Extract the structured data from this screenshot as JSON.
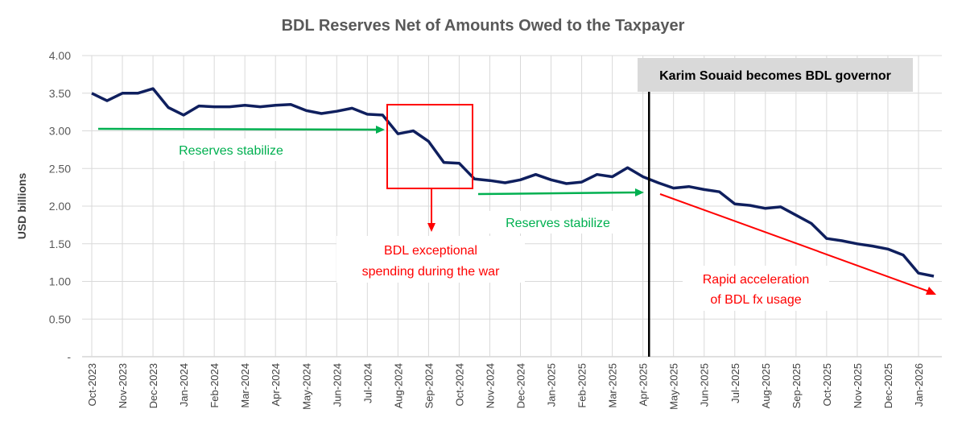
{
  "chart_data": {
    "type": "line",
    "title": "BDL Reserves Net of Amounts Owed to the Taxpayer",
    "ylabel": "USD billions",
    "xlabel": "",
    "ylim": [
      0,
      4
    ],
    "y_ticks": [
      {
        "value": 0,
        "label": "-"
      },
      {
        "value": 0.5,
        "label": "0.50"
      },
      {
        "value": 1.0,
        "label": "1.00"
      },
      {
        "value": 1.5,
        "label": "1.50"
      },
      {
        "value": 2.0,
        "label": "2.00"
      },
      {
        "value": 2.5,
        "label": "2.50"
      },
      {
        "value": 3.0,
        "label": "3.00"
      },
      {
        "value": 3.5,
        "label": "3.50"
      },
      {
        "value": 4.0,
        "label": "4.00"
      }
    ],
    "x_tick_labels": [
      {
        "index": 0,
        "label": "Oct-2023"
      },
      {
        "index": 2,
        "label": "Nov-2023"
      },
      {
        "index": 4,
        "label": "Dec-2023"
      },
      {
        "index": 6,
        "label": "Jan-2024"
      },
      {
        "index": 8,
        "label": "Feb-2024"
      },
      {
        "index": 10,
        "label": "Mar-2024"
      },
      {
        "index": 12,
        "label": "Apr-2024"
      },
      {
        "index": 14,
        "label": "May-2024"
      },
      {
        "index": 16,
        "label": "Jun-2024"
      },
      {
        "index": 18,
        "label": "Jul-2024"
      },
      {
        "index": 20,
        "label": "Aug-2024"
      },
      {
        "index": 22,
        "label": "Sep-2024"
      },
      {
        "index": 24,
        "label": "Oct-2024"
      },
      {
        "index": 26,
        "label": "Nov-2024"
      },
      {
        "index": 28,
        "label": "Dec-2024"
      },
      {
        "index": 30,
        "label": "Jan-2025"
      },
      {
        "index": 32,
        "label": "Feb-2025"
      },
      {
        "index": 34,
        "label": "Mar-2025"
      },
      {
        "index": 36,
        "label": "Apr-2025"
      },
      {
        "index": 38,
        "label": "May-2025"
      },
      {
        "index": 40,
        "label": "Jun-2025"
      },
      {
        "index": 42,
        "label": "Jul-2025"
      },
      {
        "index": 44,
        "label": "Aug-2025"
      },
      {
        "index": 46,
        "label": "Sep-2025"
      },
      {
        "index": 48,
        "label": "Oct-2025"
      },
      {
        "index": 50,
        "label": "Nov-2025"
      },
      {
        "index": 52,
        "label": "Dec-2025"
      },
      {
        "index": 54,
        "label": "Jan-2026"
      }
    ],
    "series": [
      {
        "values": [
          3.5,
          3.4,
          3.5,
          3.5,
          3.56,
          3.31,
          3.21,
          3.33,
          3.32,
          3.32,
          3.34,
          3.32,
          3.34,
          3.35,
          3.27,
          3.23,
          3.26,
          3.3,
          3.22,
          3.21,
          2.96,
          3.0,
          2.86,
          2.58,
          2.57,
          2.36,
          2.34,
          2.31,
          2.35,
          2.42,
          2.35,
          2.3,
          2.32,
          2.42,
          2.39,
          2.51,
          2.39,
          2.31,
          2.24,
          2.26,
          2.22,
          2.19,
          2.03,
          2.01,
          1.97,
          1.99,
          1.88,
          1.77,
          1.57,
          1.54,
          1.5,
          1.47,
          1.43,
          1.35,
          1.11,
          1.07
        ],
        "color": "#0f1f5e"
      }
    ],
    "grid": true,
    "annotations": {
      "stabilize_1": {
        "text": "Reserves stabilize",
        "color": "#00b050"
      },
      "stabilize_2": {
        "text": "Reserves stabilize",
        "color": "#00b050"
      },
      "war_spending": {
        "line1": "BDL exceptional",
        "line2": "spending during the war",
        "color": "#ff0000"
      },
      "acceleration": {
        "line1": "Rapid acceleration",
        "line2": "of BDL fx usage",
        "color": "#ff0000"
      },
      "governor": {
        "text": "Karim Souaid becomes BDL governor"
      }
    },
    "colors": {
      "line": "#0f1f5e",
      "green": "#00b050",
      "red": "#ff0000",
      "grid": "#d9d9d9",
      "governor_box": "#d9d9d9"
    }
  }
}
